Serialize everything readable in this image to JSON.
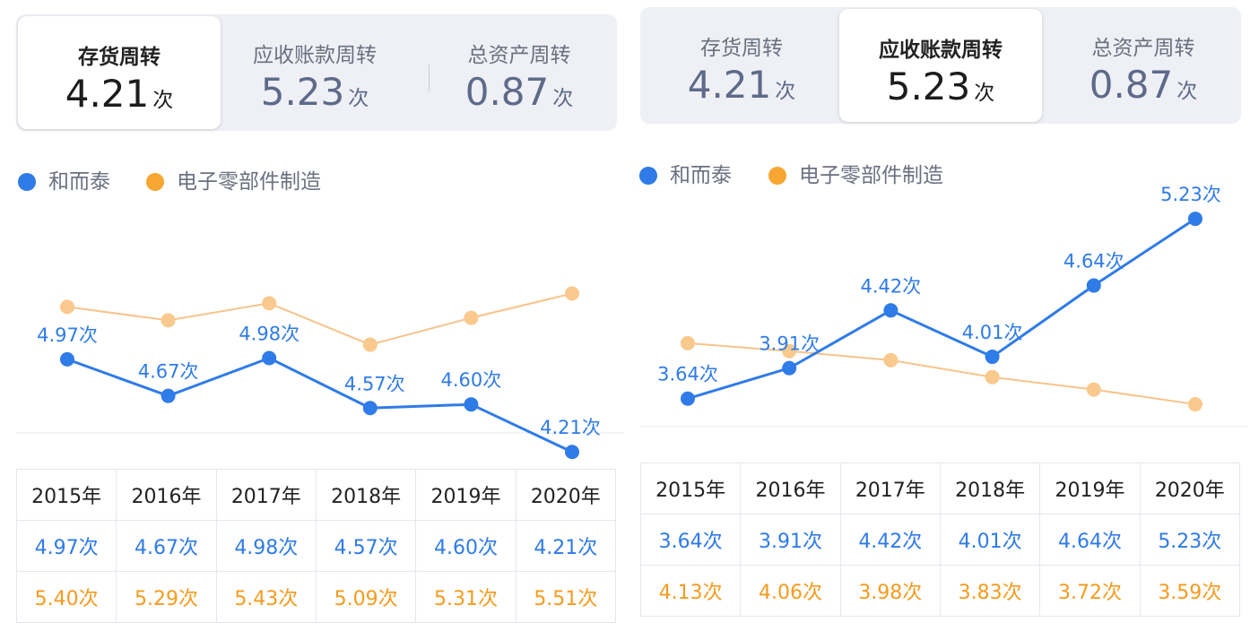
{
  "colors": {
    "company": "#2f7be8",
    "industry": "#f7c38a",
    "industry_text": "#f59b1f",
    "industry_dot": "#f9c98d"
  },
  "panels": [
    {
      "tabs": [
        {
          "label": "存货周转",
          "value": "4.21",
          "unit": "次",
          "active": true
        },
        {
          "label": "应收账款周转",
          "value": "5.23",
          "unit": "次",
          "active": false
        },
        {
          "label": "总资产周转",
          "value": "0.87",
          "unit": "次",
          "active": false
        }
      ],
      "legend": [
        {
          "name": "和而泰",
          "color": "#2f7be8"
        },
        {
          "name": "电子零部件制造",
          "color": "#f7a631"
        }
      ],
      "table": {
        "years": [
          "2015年",
          "2016年",
          "2017年",
          "2018年",
          "2019年",
          "2020年"
        ],
        "company": [
          "4.97次",
          "4.67次",
          "4.98次",
          "4.57次",
          "4.60次",
          "4.21次"
        ],
        "industry": [
          "5.40次",
          "5.29次",
          "5.43次",
          "5.09次",
          "5.31次",
          "5.51次"
        ]
      }
    },
    {
      "tabs": [
        {
          "label": "存货周转",
          "value": "4.21",
          "unit": "次",
          "active": false
        },
        {
          "label": "应收账款周转",
          "value": "5.23",
          "unit": "次",
          "active": true
        },
        {
          "label": "总资产周转",
          "value": "0.87",
          "unit": "次",
          "active": false
        }
      ],
      "legend": [
        {
          "name": "和而泰",
          "color": "#2f7be8"
        },
        {
          "name": "电子零部件制造",
          "color": "#f7a631"
        }
      ],
      "table": {
        "years": [
          "2015年",
          "2016年",
          "2017年",
          "2018年",
          "2019年",
          "2020年"
        ],
        "company": [
          "3.64次",
          "3.91次",
          "4.42次",
          "4.01次",
          "4.64次",
          "5.23次"
        ],
        "industry": [
          "4.13次",
          "4.06次",
          "3.98次",
          "3.83次",
          "3.72次",
          "3.59次"
        ]
      }
    }
  ],
  "chart_data": [
    {
      "type": "line",
      "title": "",
      "categories": [
        "2015年",
        "2016年",
        "2017年",
        "2018年",
        "2019年",
        "2020年"
      ],
      "series": [
        {
          "name": "和而泰",
          "values": [
            4.97,
            4.67,
            4.98,
            4.57,
            4.6,
            4.21
          ],
          "labels": [
            "4.97次",
            "4.67次",
            "4.98次",
            "4.57次",
            "4.60次",
            "4.21次"
          ]
        },
        {
          "name": "电子零部件制造",
          "values": [
            5.4,
            5.29,
            5.43,
            5.09,
            5.31,
            5.51
          ]
        }
      ],
      "ylim": [
        3.8,
        6.3
      ],
      "grid": false,
      "legend": "top-left"
    },
    {
      "type": "line",
      "title": "",
      "categories": [
        "2015年",
        "2016年",
        "2017年",
        "2018年",
        "2019年",
        "2020年"
      ],
      "series": [
        {
          "name": "和而泰",
          "values": [
            3.64,
            3.91,
            4.42,
            4.01,
            4.64,
            5.23
          ],
          "labels": [
            "3.64次",
            "3.91次",
            "4.42次",
            "4.01次",
            "4.64次",
            "5.23次"
          ]
        },
        {
          "name": "电子零部件制造",
          "values": [
            4.13,
            4.06,
            3.98,
            3.83,
            3.72,
            3.59
          ]
        }
      ],
      "ylim": [
        2.6,
        5.5
      ],
      "grid": false,
      "legend": "top-left"
    }
  ]
}
